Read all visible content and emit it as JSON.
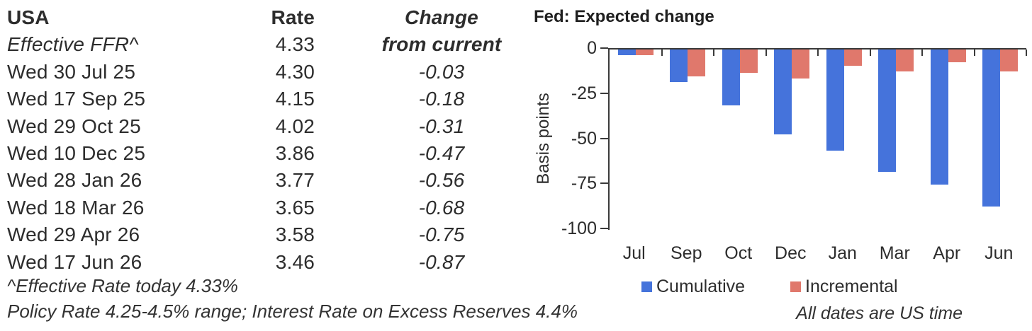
{
  "table": {
    "title": "USA",
    "col_rate": "Rate",
    "col_change_line1": "Change",
    "col_change_line2": "from current",
    "effective_row": {
      "label": "Effective FFR^",
      "rate": "4.33",
      "change": ""
    },
    "rows": [
      {
        "date": "Wed 30 Jul 25",
        "rate": "4.30",
        "change": "-0.03"
      },
      {
        "date": "Wed 17 Sep 25",
        "rate": "4.15",
        "change": "-0.18"
      },
      {
        "date": "Wed 29 Oct 25",
        "rate": "4.02",
        "change": "-0.31"
      },
      {
        "date": "Wed 10 Dec 25",
        "rate": "3.86",
        "change": "-0.47"
      },
      {
        "date": "Wed 28 Jan 26",
        "rate": "3.77",
        "change": "-0.56"
      },
      {
        "date": "Wed 18 Mar 26",
        "rate": "3.65",
        "change": "-0.68"
      },
      {
        "date": "Wed 29 Apr 26",
        "rate": "3.58",
        "change": "-0.75"
      },
      {
        "date": "Wed 17 Jun 26",
        "rate": "3.46",
        "change": "-0.87"
      }
    ],
    "footnote1": "^Effective Rate today 4.33%",
    "footnote2": "Policy Rate 4.25-4.5% range; Interest Rate on Excess Reserves 4.4%"
  },
  "chart_data": {
    "type": "bar",
    "title": "Fed: Expected change",
    "ylabel": "Basis points",
    "xlabel": "",
    "categories": [
      "Jul",
      "Sep",
      "Oct",
      "Dec",
      "Jan",
      "Mar",
      "Apr",
      "Jun"
    ],
    "series": [
      {
        "name": "Cumulative",
        "color": "#4573db",
        "values": [
          -3,
          -18,
          -31,
          -47,
          -56,
          -68,
          -75,
          -87
        ]
      },
      {
        "name": "Incremental",
        "color": "#e0786c",
        "values": [
          -3,
          -15,
          -13,
          -16,
          -9,
          -12,
          -7,
          -12
        ]
      }
    ],
    "ylim": [
      -100,
      0
    ],
    "yticks": [
      0,
      -25,
      -50,
      -75,
      -100
    ],
    "grid": false,
    "legend_position": "bottom",
    "footnote": "All dates are US time"
  }
}
